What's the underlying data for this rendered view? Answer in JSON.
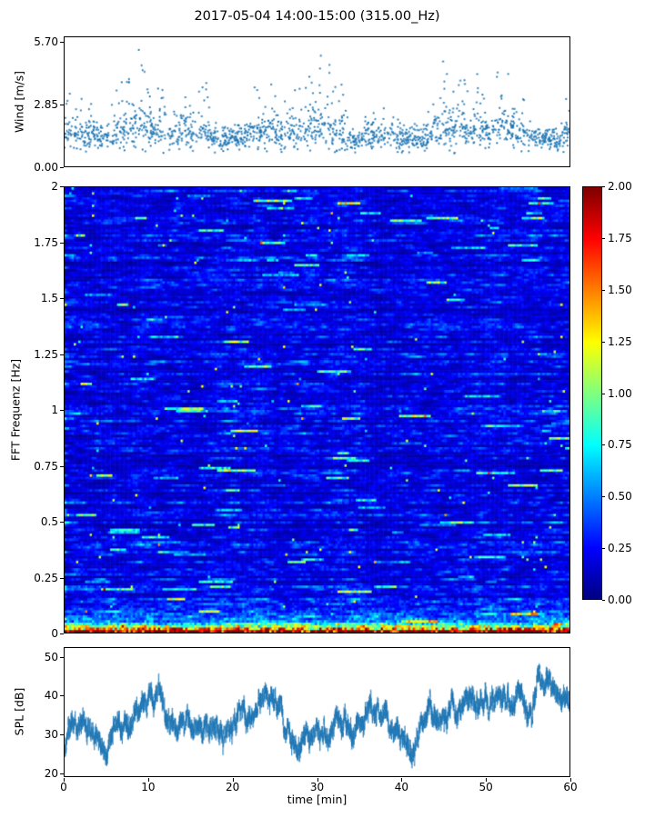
{
  "figure": {
    "title": "2017-05-04 14:00-15:00 (315.00_Hz)",
    "background": "#ffffff"
  },
  "chart_data": [
    {
      "type": "scatter",
      "name": "wind-speed",
      "ylabel": "Wind [m/s]",
      "xlim": [
        0,
        60
      ],
      "ylim": [
        0,
        5.93
      ],
      "ytick_values": [
        0,
        2.85,
        5.7
      ],
      "ytick_labels": [
        "0.00",
        "2.85",
        "5.70"
      ],
      "marker_color": "#1f77b4",
      "n_points": 1700,
      "seed": 42
    },
    {
      "type": "heatmap",
      "name": "fft-spectrogram",
      "ylabel": "FFT Frequenz [Hz]",
      "xlim": [
        0,
        60
      ],
      "ylim": [
        0,
        2
      ],
      "ytick_values": [
        0,
        0.25,
        0.5,
        0.75,
        1,
        1.25,
        1.5,
        1.75,
        2
      ],
      "ytick_labels": [
        "0",
        "0.25",
        "0.5",
        "0.75",
        "1",
        "1.25",
        "1.5",
        "1.75",
        "2"
      ],
      "colormap": "jet",
      "grid_nx": 222,
      "grid_ny": 180,
      "seed": 7,
      "colorbar": {
        "vmin": 0,
        "vmax": 2,
        "tick_values": [
          0,
          0.25,
          0.5,
          0.75,
          1,
          1.25,
          1.5,
          1.75,
          2
        ],
        "tick_labels": [
          "0.00",
          "0.25",
          "0.50",
          "0.75",
          "1.00",
          "1.25",
          "1.50",
          "1.75",
          "2.00"
        ]
      }
    },
    {
      "type": "line",
      "name": "spl",
      "ylabel": "SPL [dB]",
      "xlabel": "time [min]",
      "xlim": [
        0,
        60
      ],
      "ylim": [
        19,
        52.5
      ],
      "ytick_values": [
        20,
        30,
        40,
        50
      ],
      "ytick_labels": [
        "20",
        "30",
        "40",
        "50"
      ],
      "xtick_values": [
        0,
        10,
        20,
        30,
        40,
        50,
        60
      ],
      "xtick_labels": [
        "0",
        "10",
        "20",
        "30",
        "40",
        "50",
        "60"
      ],
      "line_color": "#1f77b4",
      "n_points": 5200,
      "seed": 99
    }
  ]
}
